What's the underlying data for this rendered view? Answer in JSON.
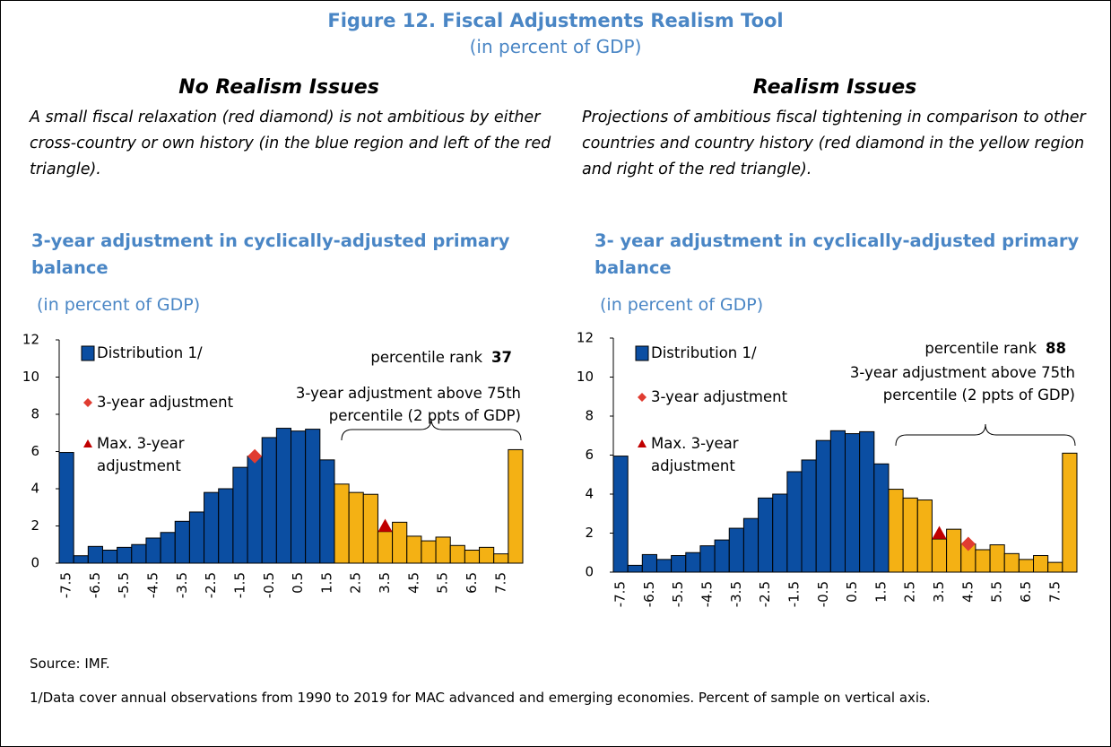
{
  "title": "Figure 12. Fiscal Adjustments Realism Tool",
  "subtitle": "(in percent of GDP)",
  "chart_data": [
    {
      "type": "bar",
      "heading": "No Realism Issues",
      "description": "A small fiscal relaxation (red diamond) is not ambitious by either cross-country or own history (in the blue region and left of the red triangle).",
      "title": "3-year adjustment in cyclically-adjusted primary balance",
      "subtitle": "(in percent of GDP)",
      "name": "Distribution 1/",
      "categories": [
        -7.5,
        null,
        -6.5,
        null,
        -5.5,
        null,
        -4.5,
        null,
        -3.5,
        null,
        -2.5,
        null,
        -1.5,
        null,
        -0.5,
        null,
        0.5,
        null,
        1.5,
        null,
        2.5,
        null,
        3.5,
        null,
        4.5,
        null,
        5.5,
        null,
        6.5,
        null,
        7.5,
        null
      ],
      "values": [
        5.95,
        0.4,
        0.9,
        0.7,
        0.85,
        1.0,
        1.35,
        1.65,
        2.25,
        2.75,
        3.8,
        4.0,
        5.15,
        5.75,
        6.75,
        7.25,
        7.1,
        7.2,
        5.55,
        4.25,
        3.8,
        3.7,
        1.7,
        2.2,
        1.45,
        1.2,
        1.4,
        0.95,
        0.7,
        0.85,
        0.5,
        6.1
      ],
      "colors": [
        "#0b4ea2",
        "#0b4ea2",
        "#0b4ea2",
        "#0b4ea2",
        "#0b4ea2",
        "#0b4ea2",
        "#0b4ea2",
        "#0b4ea2",
        "#0b4ea2",
        "#0b4ea2",
        "#0b4ea2",
        "#0b4ea2",
        "#0b4ea2",
        "#0b4ea2",
        "#0b4ea2",
        "#0b4ea2",
        "#0b4ea2",
        "#0b4ea2",
        "#0b4ea2",
        "#f4b114",
        "#f4b114",
        "#f4b114",
        "#f4b114",
        "#f4b114",
        "#f4b114",
        "#f4b114",
        "#f4b114",
        "#f4b114",
        "#f4b114",
        "#f4b114",
        "#f4b114",
        "#f4b114"
      ],
      "ylim": [
        0,
        12
      ],
      "yticks": [
        0,
        2,
        4,
        6,
        8,
        10,
        12
      ],
      "markers": [
        {
          "name": "3-year adjustment",
          "shape": "diamond",
          "color": "#e03c31",
          "x": -1.0,
          "y": 5.75
        },
        {
          "name": "Max. 3-year adjustment",
          "shape": "triangle",
          "color": "#c00000",
          "x": 3.5,
          "y": 2.0
        }
      ],
      "percentile_rank_label": "percentile rank",
      "percentile_rank": 37,
      "annotation": "3-year adjustment above 75th percentile (2 ppts of GDP)"
    },
    {
      "type": "bar",
      "heading": "Realism Issues",
      "description": "Projections of ambitious fiscal tightening in comparison to other countries and country history (red diamond in the yellow region and right of the red triangle).",
      "title": "3- year adjustment in cyclically-adjusted primary balance",
      "subtitle": "(in percent of GDP)",
      "name": "Distribution 1/",
      "categories": [
        -7.5,
        null,
        -6.5,
        null,
        -5.5,
        null,
        -4.5,
        null,
        -3.5,
        null,
        -2.5,
        null,
        -1.5,
        null,
        -0.5,
        null,
        0.5,
        null,
        1.5,
        null,
        2.5,
        null,
        3.5,
        null,
        4.5,
        null,
        5.5,
        null,
        6.5,
        null,
        7.5,
        null
      ],
      "values": [
        5.95,
        0.35,
        0.9,
        0.65,
        0.85,
        1.0,
        1.35,
        1.65,
        2.25,
        2.75,
        3.8,
        4.0,
        5.15,
        5.75,
        6.75,
        7.25,
        7.1,
        7.2,
        5.55,
        4.25,
        3.8,
        3.7,
        1.7,
        2.2,
        1.45,
        1.15,
        1.4,
        0.95,
        0.65,
        0.85,
        0.5,
        6.1
      ],
      "colors": [
        "#0b4ea2",
        "#0b4ea2",
        "#0b4ea2",
        "#0b4ea2",
        "#0b4ea2",
        "#0b4ea2",
        "#0b4ea2",
        "#0b4ea2",
        "#0b4ea2",
        "#0b4ea2",
        "#0b4ea2",
        "#0b4ea2",
        "#0b4ea2",
        "#0b4ea2",
        "#0b4ea2",
        "#0b4ea2",
        "#0b4ea2",
        "#0b4ea2",
        "#0b4ea2",
        "#f4b114",
        "#f4b114",
        "#f4b114",
        "#f4b114",
        "#f4b114",
        "#f4b114",
        "#f4b114",
        "#f4b114",
        "#f4b114",
        "#f4b114",
        "#f4b114",
        "#f4b114",
        "#f4b114"
      ],
      "ylim": [
        0,
        12
      ],
      "yticks": [
        0,
        2,
        4,
        6,
        8,
        10,
        12
      ],
      "markers": [
        {
          "name": "3-year adjustment",
          "shape": "diamond",
          "color": "#e03c31",
          "x": 4.5,
          "y": 1.45
        },
        {
          "name": "Max. 3-year adjustment",
          "shape": "triangle",
          "color": "#c00000",
          "x": 3.5,
          "y": 2.0
        }
      ],
      "percentile_rank_label": "percentile rank",
      "percentile_rank": 88,
      "annotation": "3-year adjustment above 75th percentile (2 ppts of GDP)"
    }
  ],
  "source": "Source: IMF.",
  "footnote": "1/Data cover annual observations from 1990 to 2019 for MAC advanced and emerging economies. Percent of sample on vertical axis."
}
